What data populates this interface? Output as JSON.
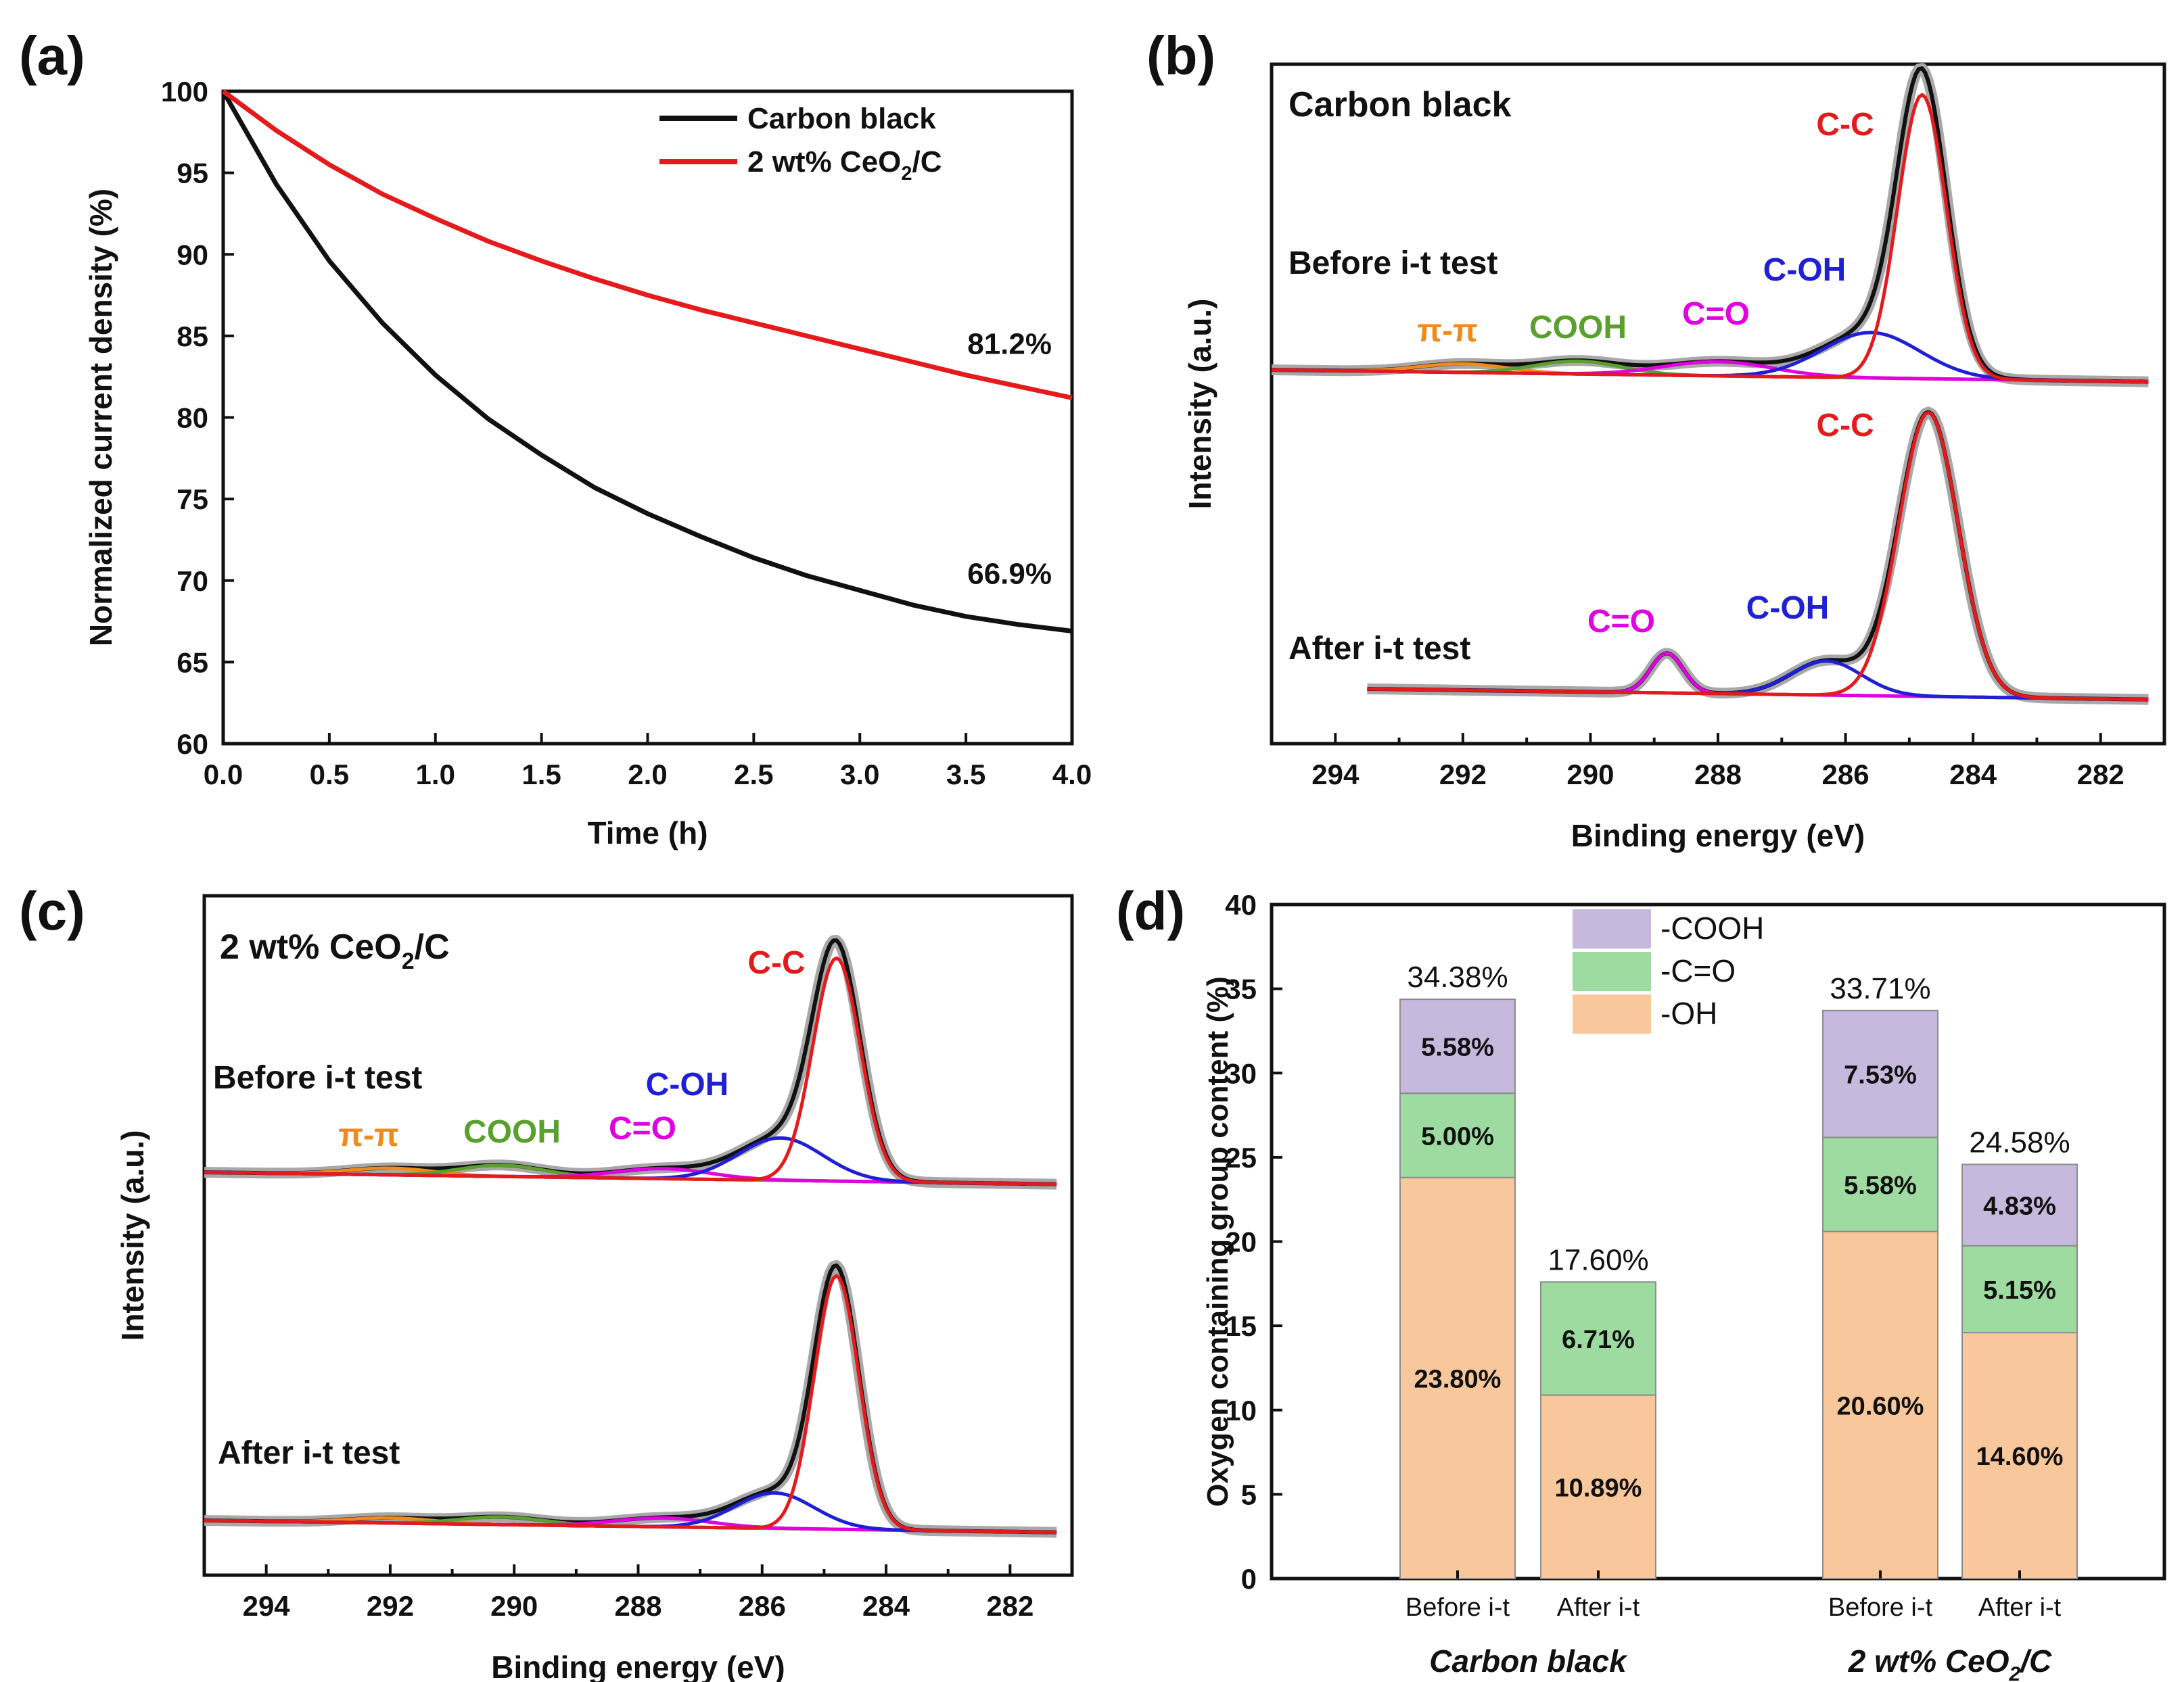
{
  "chart_data": [
    {
      "panel": "(a)",
      "type": "line",
      "xlabel": "Time (h)",
      "ylabel": "Normalized current density (%)",
      "xlim": [
        0,
        4
      ],
      "ylim": [
        60,
        100
      ],
      "xticks": [
        "0.0",
        "0.5",
        "1.0",
        "1.5",
        "2.0",
        "2.5",
        "3.0",
        "3.5",
        "4.0"
      ],
      "yticks": [
        "60",
        "65",
        "70",
        "75",
        "80",
        "85",
        "90",
        "95",
        "100"
      ],
      "legend_position": "top-right",
      "series": [
        {
          "name": "Carbon black",
          "color": "#111111",
          "x": [
            0,
            0.25,
            0.5,
            0.75,
            1.0,
            1.25,
            1.5,
            1.75,
            2.0,
            2.25,
            2.5,
            2.75,
            3.0,
            3.25,
            3.5,
            3.75,
            4.0
          ],
          "y": [
            100,
            94.3,
            89.6,
            85.8,
            82.6,
            79.9,
            77.7,
            75.7,
            74.1,
            72.7,
            71.4,
            70.3,
            69.4,
            68.5,
            67.8,
            67.3,
            66.9
          ],
          "end_label": "66.9%"
        },
        {
          "name": "2 wt% CeO₂/C",
          "name_base": "2 wt% CeO",
          "name_sub": "2",
          "name_tail": "/C",
          "color": "#e41a1c",
          "x": [
            0,
            0.25,
            0.5,
            0.75,
            1.0,
            1.25,
            1.5,
            1.75,
            2.0,
            2.25,
            2.5,
            2.75,
            3.0,
            3.25,
            3.5,
            3.75,
            4.0
          ],
          "y": [
            100,
            97.6,
            95.5,
            93.7,
            92.2,
            90.8,
            89.6,
            88.5,
            87.5,
            86.6,
            85.8,
            85.0,
            84.2,
            83.4,
            82.6,
            81.9,
            81.2
          ],
          "end_label": "81.2%"
        }
      ]
    },
    {
      "panel": "(b)",
      "type": "line",
      "title": "Carbon black",
      "xlabel": "Binding energy (eV)",
      "ylabel": "Intensity (a.u.)",
      "xlim": [
        295,
        281
      ],
      "xticks": [
        "294",
        "292",
        "290",
        "288",
        "286",
        "284",
        "282"
      ],
      "spectra": [
        {
          "label": "Before i-t test",
          "peaks": [
            {
              "name": "C-C",
              "center": 284.8,
              "fwhm": 0.9,
              "height": 1.0,
              "color": "#e41a1c"
            },
            {
              "name": "C-OH",
              "center": 285.6,
              "fwhm": 1.8,
              "height": 0.16,
              "color": "#1f1fd6"
            },
            {
              "name": "C=O",
              "center": 288.0,
              "fwhm": 2.0,
              "height": 0.05,
              "color": "#e100e1"
            },
            {
              "name": "COOH",
              "center": 290.2,
              "fwhm": 1.6,
              "height": 0.045,
              "color": "#5aa02c"
            },
            {
              "name": "π-π",
              "center": 292.0,
              "fwhm": 1.6,
              "height": 0.03,
              "color": "#f08a1c"
            }
          ]
        },
        {
          "label": "After i-t test",
          "peaks": [
            {
              "name": "C-C",
              "center": 284.7,
              "fwhm": 1.1,
              "height": 1.0,
              "color": "#e41a1c"
            },
            {
              "name": "C-OH",
              "center": 286.3,
              "fwhm": 1.3,
              "height": 0.12,
              "color": "#1f1fd6"
            },
            {
              "name": "C=O",
              "center": 288.8,
              "fwhm": 0.6,
              "height": 0.14,
              "color": "#e100e1"
            }
          ]
        }
      ]
    },
    {
      "panel": "(c)",
      "type": "line",
      "title_base": "2 wt% CeO",
      "title_sub": "2",
      "title_tail": "/C",
      "xlabel": "Binding energy (eV)",
      "ylabel": "Intensity (a.u.)",
      "xlim": [
        295,
        281
      ],
      "xticks": [
        "294",
        "292",
        "290",
        "288",
        "286",
        "284",
        "282"
      ],
      "spectra": [
        {
          "label": "Before i-t test",
          "peaks": [
            {
              "name": "C-C",
              "center": 284.8,
              "fwhm": 0.9,
              "height": 1.0,
              "color": "#e41a1c"
            },
            {
              "name": "C-OH",
              "center": 285.7,
              "fwhm": 1.6,
              "height": 0.19,
              "color": "#1f1fd6"
            },
            {
              "name": "C=O",
              "center": 287.6,
              "fwhm": 1.8,
              "height": 0.045,
              "color": "#e100e1"
            },
            {
              "name": "COOH",
              "center": 290.2,
              "fwhm": 1.6,
              "height": 0.05,
              "color": "#5aa02c"
            },
            {
              "name": "π-π",
              "center": 292.0,
              "fwhm": 1.6,
              "height": 0.03,
              "color": "#f08a1c"
            }
          ]
        },
        {
          "label": "After i-t test",
          "peaks": [
            {
              "name": "C-C",
              "center": 284.8,
              "fwhm": 0.85,
              "height": 1.0,
              "color": "#e41a1c"
            },
            {
              "name": "C-OH",
              "center": 285.8,
              "fwhm": 1.5,
              "height": 0.14,
              "color": "#1f1fd6"
            },
            {
              "name": "C=O",
              "center": 287.6,
              "fwhm": 1.8,
              "height": 0.035,
              "color": "#e100e1"
            },
            {
              "name": "COOH",
              "center": 290.2,
              "fwhm": 1.6,
              "height": 0.03,
              "color": "#5aa02c"
            },
            {
              "name": "π-π",
              "center": 292.0,
              "fwhm": 1.6,
              "height": 0.02,
              "color": "#f08a1c"
            }
          ]
        }
      ]
    },
    {
      "panel": "(d)",
      "type": "bar",
      "stacked": true,
      "ylabel": "Oxygen containing group content (%)",
      "ylim": [
        0,
        40
      ],
      "yticks": [
        "0",
        "5",
        "10",
        "15",
        "20",
        "25",
        "30",
        "35",
        "40"
      ],
      "categories": [
        "Before i-t",
        "After i-t",
        "Before i-t",
        "After i-t"
      ],
      "groups": [
        {
          "label": "Carbon black"
        },
        {
          "label_base": "2 wt% CeO",
          "label_sub": "2",
          "label_tail": "/C"
        }
      ],
      "legend_position": "top-center",
      "series": [
        {
          "name": "-OH",
          "color": "#f8c79b",
          "values": [
            23.8,
            10.89,
            20.6,
            14.6
          ],
          "labels": [
            "23.80%",
            "10.89%",
            "20.60%",
            "14.60%"
          ]
        },
        {
          "name": "-C=O",
          "color": "#9edba0",
          "values": [
            5.0,
            6.71,
            5.58,
            5.15
          ],
          "labels": [
            "5.00%",
            "6.71%",
            "5.58%",
            "5.15%"
          ]
        },
        {
          "name": "-COOH",
          "color": "#c7b8de",
          "values": [
            5.58,
            0,
            7.53,
            4.83
          ],
          "labels": [
            "5.58%",
            "",
            "7.53%",
            "4.83%"
          ]
        }
      ],
      "totals": [
        "34.38%",
        "17.60%",
        "33.71%",
        "24.58%"
      ]
    }
  ],
  "panel_labels": [
    "(a)",
    "(b)",
    "(c)",
    "(d)"
  ]
}
